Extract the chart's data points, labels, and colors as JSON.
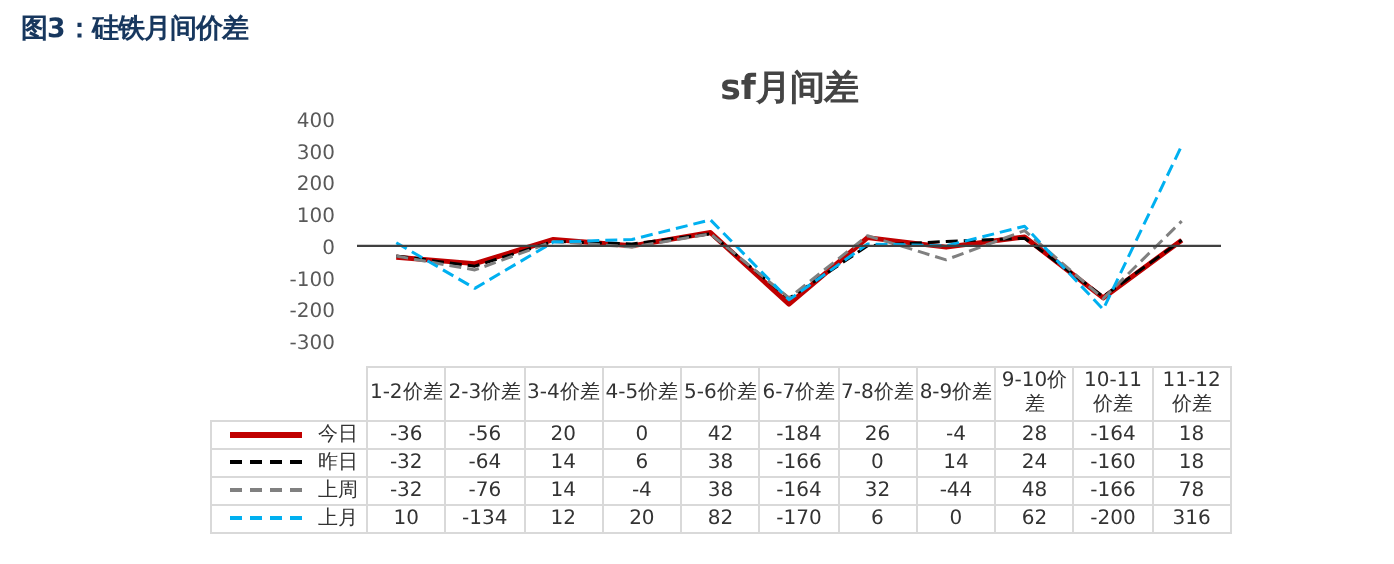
{
  "chart_data": {
    "type": "line",
    "title": "sf月间差",
    "annotations": [
      "图3：硅铁月间价差"
    ],
    "categories": [
      "1-2价差",
      "2-3价差",
      "3-4价差",
      "4-5价差",
      "5-6价差",
      "6-7价差",
      "7-8价差",
      "8-9价差",
      "9-10价差",
      "10-11价差",
      "11-12价差"
    ],
    "series": [
      {
        "name": "今日",
        "color": "#c00000",
        "line_style": "solid",
        "values": [
          -36,
          -56,
          20,
          0,
          42,
          -184,
          26,
          -4,
          28,
          -164,
          18
        ]
      },
      {
        "name": "昨日",
        "color": "#000000",
        "line_style": "dashed",
        "values": [
          -32,
          -64,
          14,
          6,
          38,
          -166,
          0,
          14,
          24,
          -160,
          18
        ]
      },
      {
        "name": "上周",
        "color": "#808080",
        "line_style": "dashed",
        "values": [
          -32,
          -76,
          14,
          -4,
          38,
          -164,
          32,
          -44,
          48,
          -166,
          78
        ]
      },
      {
        "name": "上月",
        "color": "#00b0f0",
        "line_style": "dashed",
        "values": [
          10,
          -134,
          12,
          20,
          82,
          -170,
          6,
          0,
          62,
          -200,
          316
        ]
      }
    ],
    "ylim": [
      -300,
      400
    ],
    "yticks": [
      -300,
      -200,
      -100,
      0,
      100,
      200,
      300,
      400
    ],
    "ref_lines": [
      {
        "axis": "y",
        "value": 0,
        "color": "#404040"
      }
    ],
    "grid": false,
    "legend": "bottom",
    "marker": "none",
    "data_labels": true
  }
}
